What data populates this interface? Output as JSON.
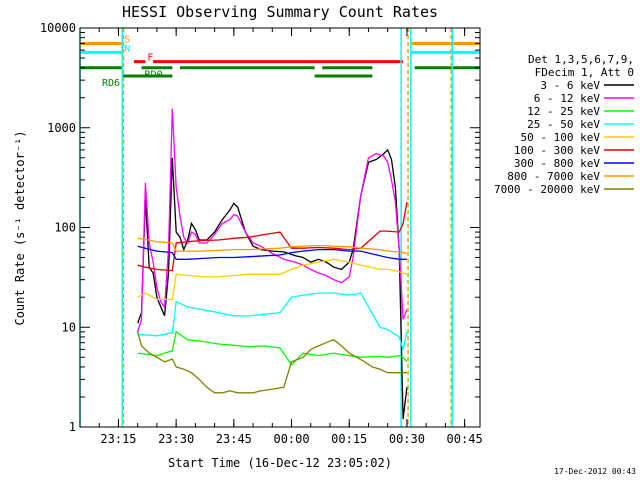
{
  "chart_data": {
    "type": "line",
    "title": "HESSI Observing Summary Count Rates",
    "xlabel": "Start Time (16-Dec-12 23:05:02)",
    "ylabel": "Count Rate (s⁻¹ detector⁻¹)",
    "x_unit": "minutes after 23:05:02",
    "x_ticks": [
      {
        "label": "23:15",
        "x": 10
      },
      {
        "label": "23:30",
        "x": 25
      },
      {
        "label": "23:45",
        "x": 40
      },
      {
        "label": "00:00",
        "x": 55
      },
      {
        "label": "00:15",
        "x": 70
      },
      {
        "label": "00:30",
        "x": 85
      },
      {
        "label": "00:45",
        "x": 100
      }
    ],
    "xlim": [
      0,
      104
    ],
    "ylim": [
      1,
      10000
    ],
    "yscale": "log",
    "y_ticks": [
      {
        "label": "1",
        "v": 1
      },
      {
        "label": "10",
        "v": 10
      },
      {
        "label": "100",
        "v": 100
      },
      {
        "label": "1000",
        "v": 1000
      },
      {
        "label": "10000",
        "v": 10000
      }
    ],
    "legend_header": [
      "Det 1,3,5,6,7,9,",
      "FDecim 1, Att 0"
    ],
    "series": [
      {
        "name": "3 - 6 keV",
        "color": "#000000",
        "x": [
          15,
          16,
          17,
          18,
          19,
          20,
          21,
          22,
          23,
          24,
          25,
          26,
          27,
          28,
          29,
          30,
          31,
          33,
          35,
          37,
          39,
          40,
          41,
          43,
          45,
          47,
          50,
          53,
          56,
          58,
          60,
          62,
          64,
          66,
          68,
          70,
          71,
          73,
          75,
          77,
          79,
          80,
          81,
          82,
          83,
          84,
          85
        ],
        "y": [
          11,
          14,
          200,
          40,
          35,
          20,
          16,
          13,
          35,
          500,
          90,
          80,
          60,
          75,
          110,
          95,
          75,
          75,
          90,
          120,
          150,
          175,
          160,
          90,
          65,
          60,
          58,
          57,
          52,
          50,
          45,
          48,
          45,
          40,
          38,
          45,
          60,
          210,
          450,
          480,
          550,
          600,
          480,
          250,
          60,
          1.2,
          2.5
        ]
      },
      {
        "name": "6 - 12 keV",
        "color": "#ff00ff",
        "x": [
          15,
          16,
          17,
          18,
          19,
          20,
          21,
          22,
          23,
          24,
          25,
          26,
          27,
          28,
          29,
          30,
          31,
          33,
          35,
          37,
          39,
          40,
          41,
          43,
          45,
          47,
          50,
          53,
          56,
          58,
          60,
          62,
          64,
          66,
          68,
          70,
          71,
          73,
          75,
          77,
          79,
          80,
          81,
          82,
          83,
          84,
          85
        ],
        "y": [
          9,
          12,
          280,
          70,
          45,
          25,
          18,
          16,
          60,
          1550,
          250,
          130,
          80,
          70,
          90,
          85,
          70,
          70,
          85,
          110,
          120,
          135,
          130,
          90,
          70,
          65,
          55,
          48,
          45,
          42,
          38,
          35,
          33,
          30,
          28,
          32,
          50,
          210,
          500,
          550,
          520,
          450,
          300,
          180,
          60,
          12,
          15
        ]
      },
      {
        "name": "12 - 25 keV",
        "color": "#00ff00",
        "x": [
          15,
          20,
          24,
          25,
          28,
          32,
          36,
          40,
          44,
          48,
          52,
          55,
          58,
          62,
          66,
          70,
          73,
          78,
          80,
          83,
          84,
          85
        ],
        "y": [
          5.5,
          5.2,
          5.8,
          9,
          7.5,
          7.2,
          6.8,
          6.6,
          6.4,
          6.5,
          6.2,
          4.2,
          5.5,
          5.2,
          5.5,
          5.2,
          5,
          5.1,
          5,
          5.2,
          5,
          4.5
        ]
      },
      {
        "name": "25 - 50 keV",
        "color": "#00ffff",
        "x": [
          15,
          20,
          24,
          25,
          28,
          32,
          36,
          40,
          44,
          48,
          52,
          55,
          58,
          62,
          66,
          70,
          73,
          78,
          80,
          83,
          84,
          85
        ],
        "y": [
          8.5,
          8.2,
          8.8,
          18,
          16,
          15,
          14,
          13,
          13,
          13.5,
          14,
          20,
          21,
          22,
          22,
          21,
          22,
          10,
          9.5,
          8,
          6,
          9
        ]
      },
      {
        "name": "50 - 100 keV",
        "color": "#ffcc00",
        "x": [
          15,
          17,
          20,
          24,
          25,
          28,
          32,
          36,
          40,
          44,
          48,
          52,
          55,
          58,
          62,
          66,
          70,
          73,
          78,
          80,
          83,
          84,
          85
        ],
        "y": [
          20,
          22,
          19,
          19,
          34,
          33,
          32,
          32,
          33,
          34,
          34,
          34,
          38,
          42,
          45,
          48,
          45,
          42,
          38,
          38,
          36,
          35,
          34
        ]
      },
      {
        "name": "100 - 300 keV",
        "color": "#e00000",
        "x": [
          15,
          17,
          20,
          24,
          25,
          28,
          32,
          36,
          40,
          44,
          48,
          52,
          55,
          58,
          62,
          66,
          70,
          73,
          78,
          80,
          83,
          84,
          85
        ],
        "y": [
          42,
          40,
          38,
          37,
          70,
          72,
          74,
          75,
          78,
          80,
          85,
          90,
          62,
          62,
          63,
          62,
          60,
          62,
          92,
          92,
          90,
          110,
          180
        ]
      },
      {
        "name": "300 - 800 keV",
        "color": "#0000ff",
        "x": [
          15,
          17,
          20,
          24,
          25,
          28,
          32,
          36,
          40,
          44,
          48,
          52,
          55,
          58,
          62,
          66,
          70,
          73,
          78,
          80,
          83,
          84,
          85
        ],
        "y": [
          65,
          62,
          58,
          56,
          48,
          48,
          49,
          50,
          50,
          51,
          52,
          53,
          56,
          58,
          60,
          60,
          58,
          58,
          52,
          50,
          48,
          48,
          48
        ]
      },
      {
        "name": "800 - 7000 keV",
        "color": "#ff9900",
        "x": [
          15,
          17,
          20,
          24,
          25,
          28,
          32,
          36,
          40,
          44,
          48,
          52,
          55,
          58,
          62,
          66,
          70,
          73,
          78,
          80,
          83,
          84,
          85
        ],
        "y": [
          78,
          76,
          72,
          70,
          58,
          58,
          58,
          59,
          60,
          60,
          61,
          62,
          64,
          65,
          66,
          65,
          64,
          62,
          60,
          58,
          57,
          56,
          55
        ]
      },
      {
        "name": "7000 - 20000 keV",
        "color": "#808000",
        "x": [
          15,
          16,
          18,
          20,
          22,
          24,
          25,
          27,
          29,
          31,
          33,
          35,
          37,
          39,
          41,
          43,
          45,
          47,
          50,
          53,
          55,
          58,
          60,
          62,
          64,
          66,
          68,
          70,
          72,
          74,
          76,
          78,
          80,
          83,
          84,
          85
        ],
        "y": [
          9,
          6.5,
          5.5,
          5,
          4.5,
          4.8,
          4,
          3.8,
          3.5,
          3,
          2.5,
          2.2,
          2.2,
          2.3,
          2.2,
          2.2,
          2.2,
          2.3,
          2.4,
          2.5,
          4.5,
          5,
          6,
          6.5,
          7,
          7.5,
          6.5,
          5.5,
          5,
          4.5,
          4,
          3.8,
          3.5,
          3.5,
          3.5,
          3.5
        ]
      }
    ],
    "vlines": [
      {
        "x": 0,
        "color": "#00ffff"
      },
      {
        "x": 11,
        "color": "#00ffff"
      },
      {
        "x": 11.3,
        "color": "#ff9900"
      },
      {
        "x": 83.5,
        "color": "#00ffff"
      },
      {
        "x": 85.3,
        "color": "#ff9900"
      },
      {
        "x": 86,
        "color": "#00ffff"
      },
      {
        "x": 96.5,
        "color": "#ff9900"
      },
      {
        "x": 96.8,
        "color": "#00ffff"
      }
    ],
    "flags": [
      {
        "label": "S",
        "color": "#ff9900",
        "y": 7000,
        "segments": [
          [
            0,
            11
          ],
          [
            86,
            104
          ]
        ]
      },
      {
        "label": "N",
        "color": "#00ffff",
        "y": 5700,
        "segments": [
          [
            0,
            11
          ],
          [
            86,
            104
          ]
        ]
      },
      {
        "label": "F",
        "color": "#ff0000",
        "y": 4600,
        "segments": [
          [
            14,
            17
          ],
          [
            19,
            84
          ]
        ]
      },
      {
        "label": "RD0",
        "color": "#008000",
        "y": 4000,
        "segments": [
          [
            0,
            11
          ],
          [
            16,
            24
          ],
          [
            26,
            61
          ],
          [
            63,
            76
          ],
          [
            87,
            104
          ]
        ]
      },
      {
        "label": "RD6",
        "color": "#008000",
        "y": 3300,
        "segments": [
          [
            11,
            24
          ],
          [
            61,
            76
          ]
        ]
      }
    ],
    "footer_date": "17-Dec-2012 00:43",
    "grid": false,
    "legend_position": "right"
  }
}
